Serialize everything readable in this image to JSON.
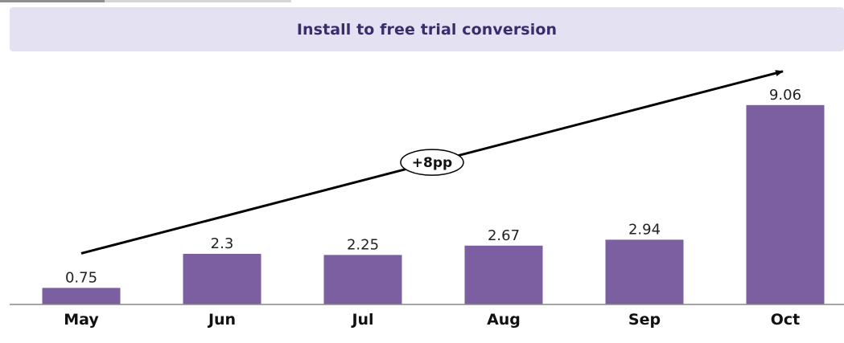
{
  "chart_data": {
    "type": "bar",
    "title": "Install to free trial conversion",
    "categories": [
      "May",
      "Jun",
      "Jul",
      "Aug",
      "Sep",
      "Oct"
    ],
    "values": [
      0.75,
      2.3,
      2.25,
      2.67,
      2.94,
      9.06
    ],
    "value_labels": [
      "0.75",
      "2.3",
      "2.25",
      "2.67",
      "2.94",
      "9.06"
    ],
    "ylim": [
      0,
      10
    ],
    "grid": false,
    "legend": "none",
    "bar_color": "#7b5fa0",
    "annotation": {
      "text": "+8pp",
      "type": "trend-arrow",
      "from_category": "May",
      "to_category": "Oct"
    }
  }
}
